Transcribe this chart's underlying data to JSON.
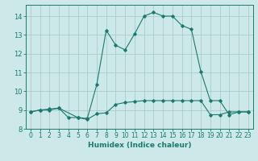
{
  "title": "",
  "xlabel": "Humidex (Indice chaleur)",
  "background_color": "#cce8e8",
  "grid_color": "#aacccc",
  "line_color": "#1a7a6e",
  "xlim": [
    -0.5,
    23.5
  ],
  "ylim": [
    8.0,
    14.6
  ],
  "yticks": [
    8,
    9,
    10,
    11,
    12,
    13,
    14
  ],
  "xticks": [
    0,
    1,
    2,
    3,
    4,
    5,
    6,
    7,
    8,
    9,
    10,
    11,
    12,
    13,
    14,
    15,
    16,
    17,
    18,
    19,
    20,
    21,
    22,
    23
  ],
  "series1": [
    [
      0,
      8.9
    ],
    [
      1,
      9.0
    ],
    [
      2,
      9.0
    ],
    [
      3,
      9.1
    ],
    [
      4,
      8.6
    ],
    [
      5,
      8.6
    ],
    [
      6,
      8.5
    ],
    [
      7,
      8.8
    ],
    [
      8,
      8.85
    ],
    [
      9,
      9.3
    ],
    [
      10,
      9.4
    ],
    [
      11,
      9.45
    ],
    [
      12,
      9.5
    ],
    [
      13,
      9.5
    ],
    [
      14,
      9.5
    ],
    [
      15,
      9.5
    ],
    [
      16,
      9.5
    ],
    [
      17,
      9.5
    ],
    [
      18,
      9.5
    ],
    [
      19,
      8.75
    ],
    [
      20,
      8.75
    ],
    [
      21,
      8.9
    ],
    [
      22,
      8.9
    ],
    [
      23,
      8.9
    ]
  ],
  "series2": [
    [
      0,
      8.9
    ],
    [
      1,
      9.0
    ],
    [
      2,
      9.05
    ],
    [
      3,
      9.1
    ],
    [
      5,
      8.6
    ],
    [
      6,
      8.55
    ],
    [
      7,
      10.35
    ],
    [
      8,
      13.25
    ],
    [
      9,
      12.45
    ],
    [
      10,
      12.2
    ],
    [
      11,
      13.05
    ],
    [
      12,
      14.0
    ],
    [
      13,
      14.2
    ],
    [
      14,
      14.0
    ],
    [
      15,
      14.0
    ],
    [
      16,
      13.5
    ],
    [
      17,
      13.3
    ],
    [
      18,
      11.05
    ],
    [
      19,
      9.5
    ],
    [
      20,
      9.5
    ],
    [
      21,
      8.75
    ],
    [
      22,
      8.9
    ],
    [
      23,
      8.9
    ]
  ]
}
